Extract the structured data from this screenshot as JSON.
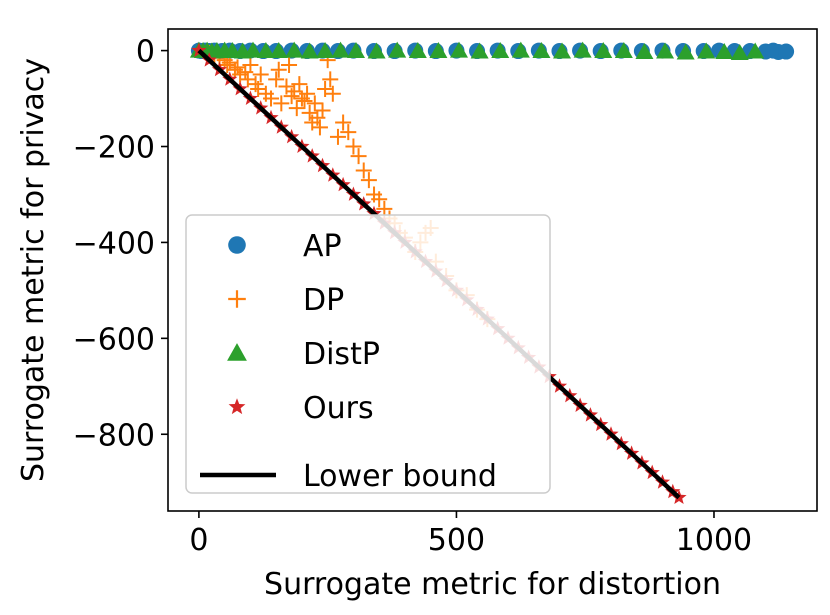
{
  "chart_data": {
    "type": "scatter",
    "title": "",
    "xlabel": "Surrogate metric for distortion",
    "ylabel": "Surrogate metric for privacy",
    "xlim": [
      -60,
      1200
    ],
    "ylim": [
      -960,
      45
    ],
    "xticks": [
      0,
      500,
      1000
    ],
    "yticks": [
      0,
      -200,
      -400,
      -600,
      -800
    ],
    "xtick_labels": [
      "0",
      "500",
      "1000"
    ],
    "ytick_labels": [
      "0",
      "−200",
      "−400",
      "−600",
      "−800"
    ],
    "legend_position": "lower-left",
    "series": [
      {
        "name": "AP",
        "marker": "circle",
        "color": "#1f77b4",
        "x": [
          0,
          5,
          12,
          20,
          30,
          45,
          60,
          80,
          100,
          125,
          150,
          180,
          210,
          240,
          270,
          300,
          340,
          380,
          420,
          460,
          500,
          540,
          580,
          620,
          660,
          700,
          740,
          780,
          820,
          860,
          900,
          940,
          980,
          1010,
          1040,
          1070,
          1100,
          1115,
          1125,
          1140
        ],
        "y": [
          0,
          -1,
          0,
          -1,
          0,
          -1,
          0,
          -1,
          0,
          -1,
          -1,
          0,
          -1,
          0,
          -1,
          0,
          -1,
          -1,
          0,
          -1,
          0,
          -1,
          0,
          -1,
          0,
          -1,
          0,
          -1,
          0,
          -1,
          0,
          -1,
          -1,
          0,
          -1,
          -1,
          -2,
          0,
          -3,
          -2
        ]
      },
      {
        "name": "DP",
        "marker": "plus",
        "color": "#ff7f0e",
        "x": [
          20,
          30,
          40,
          50,
          55,
          60,
          70,
          75,
          80,
          90,
          95,
          100,
          110,
          115,
          120,
          130,
          140,
          150,
          155,
          160,
          170,
          175,
          180,
          185,
          190,
          195,
          200,
          205,
          210,
          215,
          220,
          225,
          230,
          235,
          240,
          245,
          250,
          255,
          260,
          270,
          280,
          290,
          300,
          310,
          320,
          330,
          340,
          350,
          360,
          370,
          380,
          390,
          400,
          420,
          430,
          440,
          450,
          460,
          480,
          500,
          520,
          540,
          560
        ],
        "y": [
          -5,
          -10,
          -15,
          -20,
          -30,
          -25,
          -40,
          -35,
          -50,
          -45,
          -60,
          -30,
          -70,
          -80,
          -50,
          -90,
          -100,
          -60,
          -40,
          -110,
          -75,
          -30,
          -95,
          -85,
          -120,
          -70,
          -100,
          -105,
          -90,
          -130,
          -150,
          -110,
          -140,
          -160,
          -125,
          -80,
          -20,
          -60,
          -90,
          -180,
          -150,
          -170,
          -200,
          -220,
          -250,
          -270,
          -300,
          -310,
          -330,
          -350,
          -360,
          -380,
          -390,
          -420,
          -400,
          -380,
          -370,
          -440,
          -470,
          -500,
          -510,
          -540,
          -560
        ]
      },
      {
        "name": "DistP",
        "marker": "triangle",
        "color": "#2ca02c",
        "x": [
          0,
          8,
          16,
          25,
          35,
          50,
          65,
          85,
          105,
          130,
          155,
          185,
          215,
          245,
          275,
          305,
          345,
          385,
          425,
          465,
          505,
          545,
          585,
          625,
          665,
          705,
          745,
          785,
          825,
          865,
          905,
          945,
          985,
          1020,
          1050,
          1080
        ],
        "y": [
          0,
          -1,
          0,
          -2,
          -1,
          0,
          -1,
          -2,
          0,
          -1,
          -1,
          0,
          -2,
          -1,
          0,
          -1,
          -2,
          0,
          -1,
          -1,
          0,
          -2,
          -1,
          0,
          -1,
          -2,
          0,
          -1,
          -1,
          -3,
          -2,
          -4,
          -2,
          -3,
          -5,
          -2
        ]
      },
      {
        "name": "Ours",
        "marker": "star",
        "color": "#d62728",
        "x": [
          0,
          20,
          40,
          60,
          80,
          100,
          120,
          140,
          160,
          180,
          200,
          220,
          240,
          260,
          280,
          300,
          320,
          340,
          360,
          380,
          400,
          420,
          440,
          460,
          480,
          500,
          520,
          540,
          560,
          580,
          600,
          620,
          640,
          660,
          680,
          700,
          720,
          740,
          760,
          780,
          800,
          820,
          840,
          860,
          880,
          900,
          920,
          932
        ],
        "y": [
          0,
          -20,
          -40,
          -60,
          -80,
          -100,
          -120,
          -140,
          -160,
          -180,
          -200,
          -220,
          -240,
          -260,
          -280,
          -300,
          -320,
          -340,
          -360,
          -380,
          -400,
          -420,
          -440,
          -460,
          -480,
          -500,
          -520,
          -540,
          -560,
          -580,
          -600,
          -620,
          -640,
          -660,
          -680,
          -700,
          -720,
          -740,
          -760,
          -780,
          -800,
          -820,
          -840,
          -860,
          -880,
          -900,
          -920,
          -932
        ]
      },
      {
        "name": "Lower bound",
        "marker": "line",
        "color": "#000000",
        "x": [
          0,
          932
        ],
        "y": [
          0,
          -932
        ]
      }
    ]
  }
}
